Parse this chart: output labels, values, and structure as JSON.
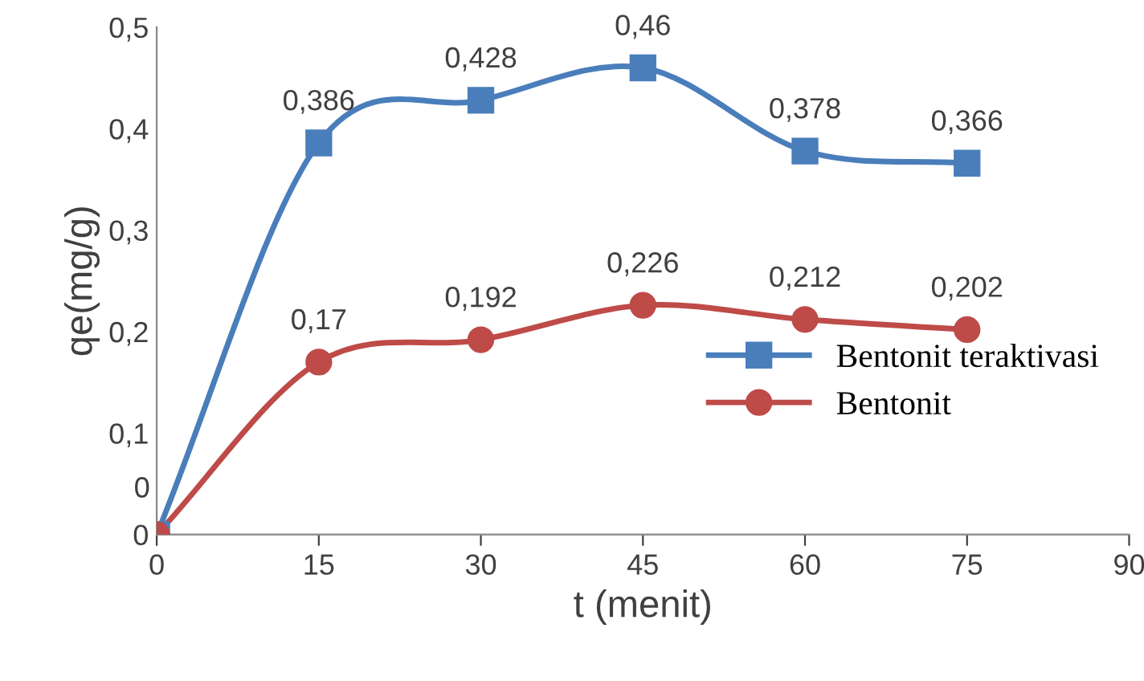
{
  "chart_data": {
    "type": "line",
    "xlabel": "t (menit)",
    "ylabel": "qe(mg/g)",
    "x": [
      0,
      15,
      30,
      45,
      60,
      75
    ],
    "series": [
      {
        "name": "Bentonit teraktivasi",
        "color": "#4a7ebb",
        "marker": "square",
        "values": [
          0,
          0.386,
          0.428,
          0.46,
          0.378,
          0.366
        ],
        "value_labels": [
          "0",
          "0,386",
          "0,428",
          "0,46",
          "0,378",
          "0,366"
        ]
      },
      {
        "name": "Bentonit",
        "color": "#be4b48",
        "marker": "circle",
        "values": [
          0,
          0.17,
          0.192,
          0.226,
          0.212,
          0.202
        ],
        "value_labels": [
          null,
          "0,17",
          "0,192",
          "0,226",
          "0,212",
          "0,202"
        ]
      }
    ],
    "xlim": [
      0,
      90
    ],
    "xticks": [
      0,
      15,
      30,
      45,
      60,
      75,
      90
    ],
    "ylim": [
      0,
      0.5
    ],
    "yticks": [
      0,
      {
        "value": 0.1,
        "label": "0,1"
      },
      {
        "value": 0.2,
        "label": "0,2"
      },
      {
        "value": 0.3,
        "label": "0,3"
      },
      {
        "value": 0.4,
        "label": "0,4"
      },
      {
        "value": 0.5,
        "label": "0,5"
      }
    ],
    "grid": false,
    "legend": "right",
    "line_style": "solid"
  }
}
